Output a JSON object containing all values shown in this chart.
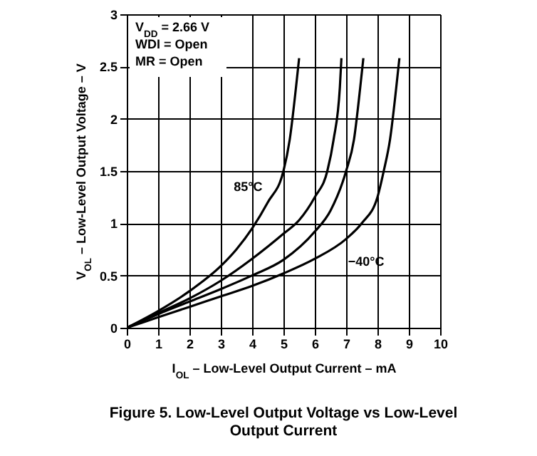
{
  "chart_data": {
    "type": "line",
    "title": "Figure 5. Low-Level Output Voltage vs Low-Level Output Current",
    "xlabel": "I$_{OL}$ – Low-Level Output Current – mA",
    "ylabel": "V$_{OL}$ – Low-Level Output Voltage – V",
    "series": [
      {
        "color": "#000000",
        "x": [
          0,
          1,
          2,
          3,
          3.5,
          4,
          4.5,
          5,
          5.2,
          5.4,
          5.5
        ],
        "values": [
          0,
          0.16,
          0.35,
          0.59,
          0.75,
          0.95,
          1.2,
          1.5,
          1.8,
          2.3,
          2.58
        ]
      },
      {
        "color": "#000000",
        "x": [
          0,
          1,
          2,
          3,
          4,
          5,
          5.5,
          6,
          6.4,
          6.6,
          6.8,
          6.85
        ],
        "values": [
          0,
          0.14,
          0.28,
          0.45,
          0.66,
          0.9,
          1.03,
          1.25,
          1.5,
          1.8,
          2.3,
          2.58
        ]
      },
      {
        "color": "#000000",
        "x": [
          0,
          1,
          2,
          3,
          4,
          5,
          6,
          6.5,
          7,
          7.25,
          7.45,
          7.55
        ],
        "values": [
          0,
          0.13,
          0.25,
          0.37,
          0.5,
          0.65,
          0.92,
          1.12,
          1.5,
          1.8,
          2.3,
          2.58
        ]
      },
      {
        "color": "#000000",
        "x": [
          0,
          1,
          2,
          3,
          4,
          5,
          6,
          7,
          7.5,
          8,
          8.2,
          8.4,
          8.6,
          8.7
        ],
        "values": [
          0,
          0.1,
          0.2,
          0.3,
          0.4,
          0.52,
          0.66,
          0.85,
          1.0,
          1.25,
          1.5,
          1.8,
          2.3,
          2.58
        ]
      }
    ],
    "annotations": [
      "V$_{DD}$ = 2.66 V",
      "WDI = Open",
      "MR = Open",
      {
        "text": "85°C",
        "x": 4.6,
        "y": 1.2
      },
      {
        "text": "−40°C",
        "x": 6.7,
        "y": 0.8
      }
    ],
    "xlim": [
      0,
      10
    ],
    "ylim": [
      0,
      3
    ],
    "xticks": [
      0,
      1,
      2,
      3,
      4,
      5,
      6,
      7,
      8,
      9,
      10
    ],
    "yticks": [
      0,
      0.5,
      1,
      1.5,
      2,
      2.5,
      3
    ],
    "grid": true,
    "line_style": "solid",
    "marker": "none"
  }
}
